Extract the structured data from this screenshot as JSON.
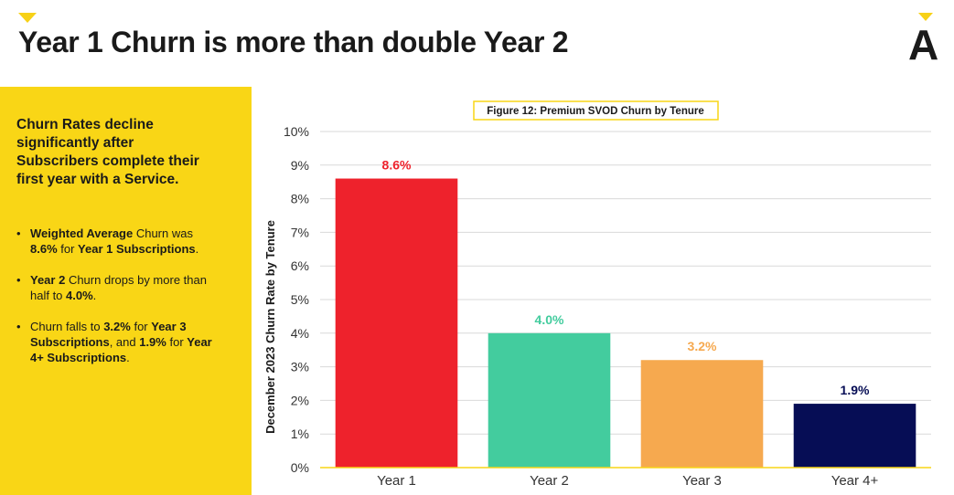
{
  "header": {
    "title": "Year 1 Churn is more than double Year 2",
    "logo": "A",
    "accent_color": "#F9D616"
  },
  "sidebar": {
    "heading": "Churn Rates decline significantly after Subscribers complete their first year with a Service.",
    "bullets": [
      [
        {
          "t": "Weighted Average",
          "b": true
        },
        {
          "t": " Churn was ",
          "b": false
        },
        {
          "t": "8.6%",
          "b": true
        },
        {
          "t": " for ",
          "b": false
        },
        {
          "t": "Year 1 Subscriptions",
          "b": true
        },
        {
          "t": ".",
          "b": false
        }
      ],
      [
        {
          "t": "Year 2",
          "b": true
        },
        {
          "t": " Churn drops by more than half to ",
          "b": false
        },
        {
          "t": "4.0%",
          "b": true
        },
        {
          "t": ".",
          "b": false
        }
      ],
      [
        {
          "t": "Churn falls to ",
          "b": false
        },
        {
          "t": "3.2%",
          "b": true
        },
        {
          "t": " for ",
          "b": false
        },
        {
          "t": "Year 3 Subscriptions",
          "b": true
        },
        {
          "t": ", and ",
          "b": false
        },
        {
          "t": "1.9%",
          "b": true
        },
        {
          "t": " for ",
          "b": false
        },
        {
          "t": "Year 4+ Subscriptions",
          "b": true
        },
        {
          "t": ".",
          "b": false
        }
      ]
    ]
  },
  "chart_data": {
    "type": "bar",
    "title": "Figure 12: Premium SVOD Churn by Tenure",
    "xlabel": "",
    "ylabel": "December 2023 Churn Rate by Tenure",
    "categories": [
      "Year 1",
      "Year 2",
      "Year 3",
      "Year 4+"
    ],
    "values": [
      8.6,
      4.0,
      3.2,
      1.9
    ],
    "value_labels": [
      "8.6%",
      "4.0%",
      "3.2%",
      "1.9%"
    ],
    "bar_colors": [
      "#EE222C",
      "#43CC9E",
      "#F6A94F",
      "#060D55"
    ],
    "ylim": [
      0,
      10
    ],
    "yticks": [
      0,
      1,
      2,
      3,
      4,
      5,
      6,
      7,
      8,
      9,
      10
    ],
    "ytick_labels": [
      "0%",
      "1%",
      "2%",
      "3%",
      "4%",
      "5%",
      "6%",
      "7%",
      "8%",
      "9%",
      "10%"
    ],
    "grid": true,
    "legend": "none"
  }
}
